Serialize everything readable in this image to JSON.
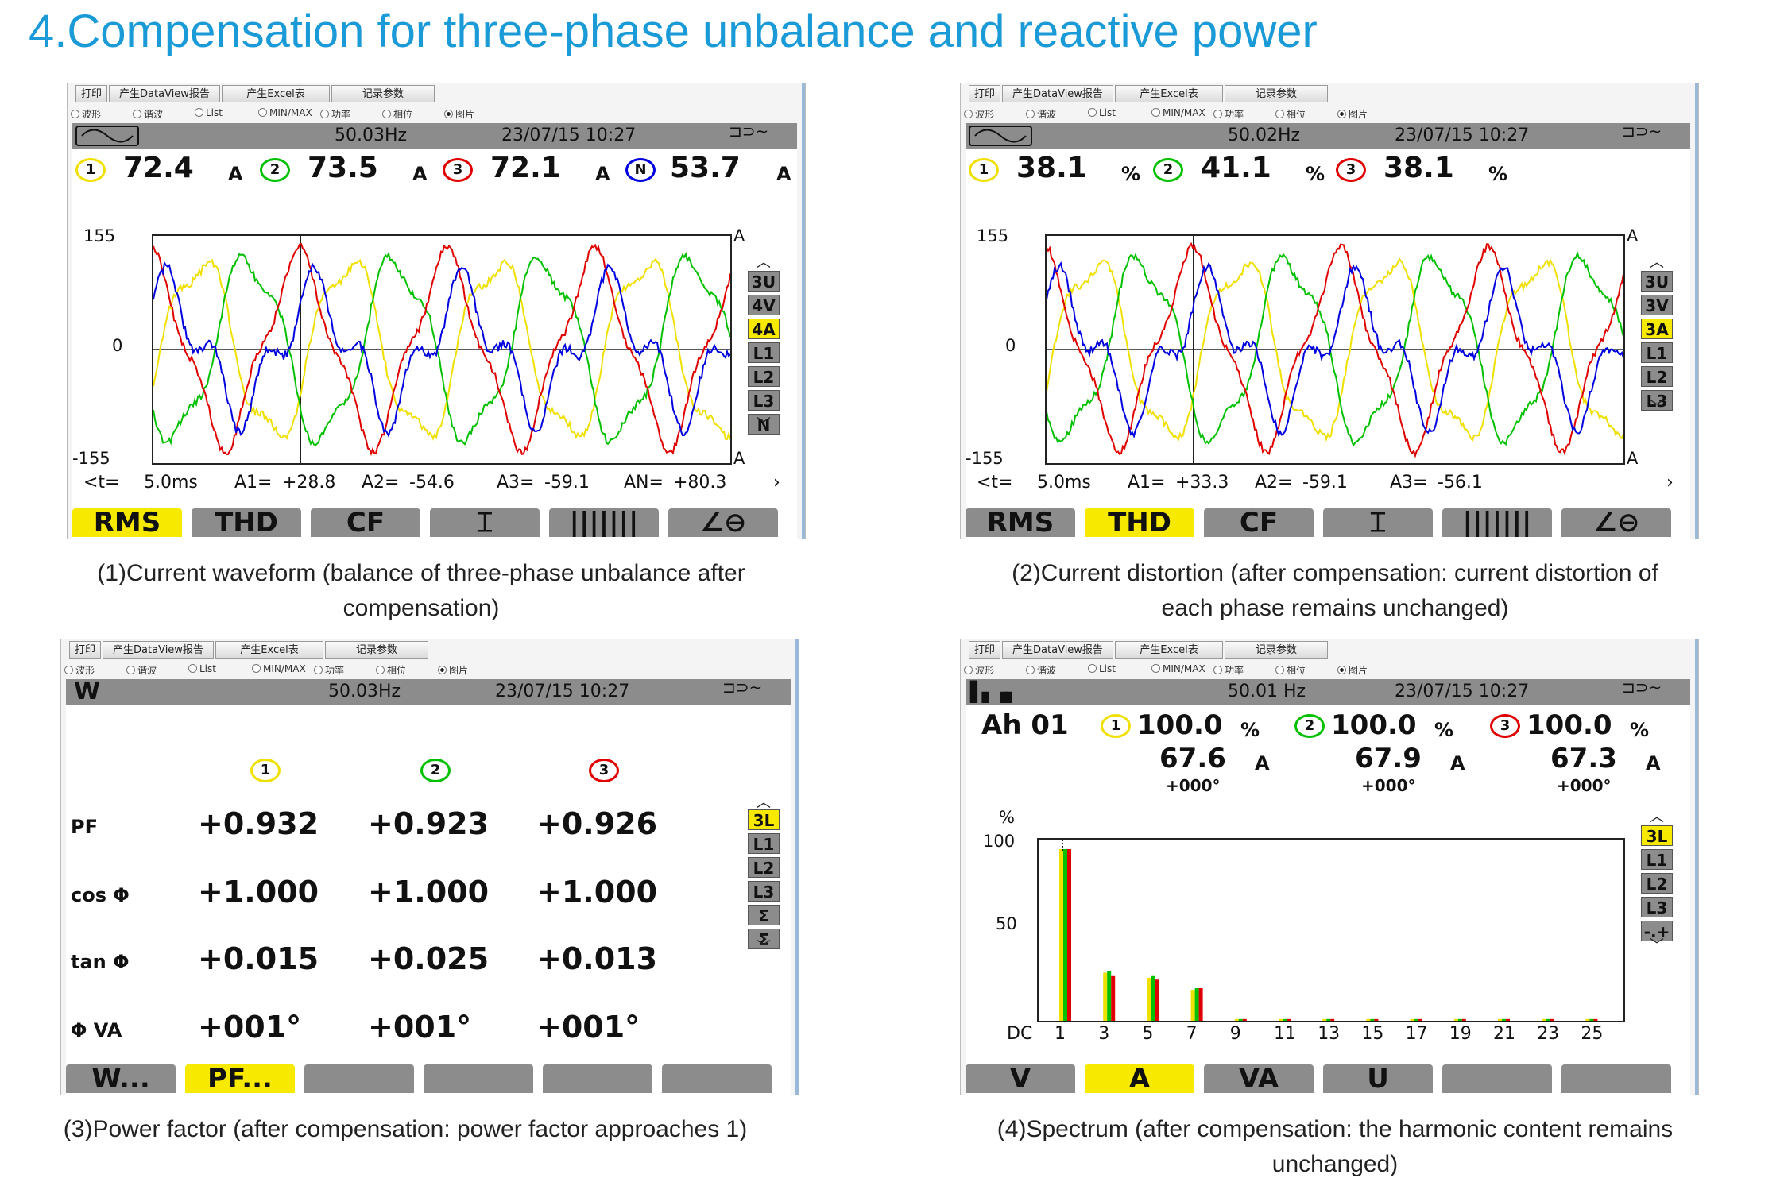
{
  "page_title": "4.Compensation for three-phase unbalance and reactive power",
  "toolbar": {
    "print": "打印",
    "dataview": "产生DataView报告",
    "excel": "产生Excel表",
    "record": "记录参数"
  },
  "radios": [
    {
      "label": "波形",
      "selected": false
    },
    {
      "label": "谐波",
      "selected": false
    },
    {
      "label": "List",
      "selected": false
    },
    {
      "label": "MIN/MAX",
      "selected": false
    },
    {
      "label": "功率",
      "selected": false
    },
    {
      "label": "相位",
      "selected": false
    },
    {
      "label": "图片",
      "selected": true
    }
  ],
  "panel1": {
    "freq": "50.03Hz",
    "datetime": "23/07/15  10:27",
    "phase_badges": [
      "1",
      "2",
      "3",
      "N"
    ],
    "values": [
      "72.4",
      "73.5",
      "72.1",
      "53.7"
    ],
    "unit": "A",
    "y_max": "155",
    "y_zero": "0",
    "y_min": "-155",
    "y_unit": "A",
    "side_buttons": [
      "3U",
      "4V",
      "4A",
      "L1",
      "L2",
      "L3",
      "N"
    ],
    "side_active": "4A",
    "cursor": {
      "t": "<t=",
      "t_val": "5.0ms",
      "a1": "A1=",
      "a1_val": "+28.8",
      "a2": "A2=",
      "a2_val": "-54.6",
      "a3": "A3=",
      "a3_val": "-59.1",
      "an": "AN=",
      "an_val": "+80.3",
      "arrow": "›"
    },
    "fbuttons": [
      "RMS",
      "THD",
      "CF",
      "⌶",
      "|||||||",
      "∠⊖"
    ],
    "factive": "RMS",
    "caption_l1": "(1)Current waveform (balance of three-phase unbalance after",
    "caption_l2": "compensation)"
  },
  "panel2": {
    "freq": "50.02Hz",
    "datetime": "23/07/15  10:27",
    "phase_badges": [
      "1",
      "2",
      "3"
    ],
    "values": [
      "38.1",
      "41.1",
      "38.1"
    ],
    "unit": "%",
    "y_max": "155",
    "y_zero": "0",
    "y_min": "-155",
    "y_unit": "A",
    "side_buttons": [
      "3U",
      "3V",
      "3A",
      "L1",
      "L2",
      "L3"
    ],
    "side_active": "3A",
    "cursor": {
      "t": "<t=",
      "t_val": "5.0ms",
      "a1": "A1=",
      "a1_val": "+33.3",
      "a2": "A2=",
      "a2_val": "-59.1",
      "a3": "A3=",
      "a3_val": "-56.1",
      "arrow": "›"
    },
    "fbuttons": [
      "RMS",
      "THD",
      "CF",
      "⌶",
      "|||||||",
      "∠⊖"
    ],
    "factive": "THD",
    "caption_l1": "(2)Current distortion (after compensation: current distortion of",
    "caption_l2": "each phase remains unchanged)"
  },
  "panel3": {
    "freq": "50.03Hz",
    "datetime": "23/07/15  10:27",
    "phase_badges": [
      "1",
      "2",
      "3"
    ],
    "rows": [
      {
        "label": "PF",
        "v": [
          "+0.932",
          "+0.923",
          "+0.926"
        ]
      },
      {
        "label": "cos Φ",
        "v": [
          "+1.000",
          "+1.000",
          "+1.000"
        ]
      },
      {
        "label": "tan Φ",
        "v": [
          "+0.015",
          "+0.025",
          "+0.013"
        ]
      },
      {
        "label": "Φ VA",
        "v": [
          "+001°",
          "+001°",
          "+001°"
        ]
      }
    ],
    "side_buttons": [
      "3L",
      "L1",
      "L2",
      "L3",
      "Σ",
      "Σ̄"
    ],
    "side_active": "3L",
    "fbuttons": [
      "W...",
      "PF...",
      "",
      "",
      "",
      ""
    ],
    "factive": "PF...",
    "caption": "(3)Power factor (after compensation: power factor approaches 1)"
  },
  "panel4": {
    "freq": "50.01 Hz",
    "datetime": "23/07/15  10:27",
    "harmonic": "Ah 01",
    "phase_badges": [
      "1",
      "2",
      "3"
    ],
    "pct": [
      "100.0",
      "100.0",
      "100.0"
    ],
    "pct_unit": "%",
    "amps": [
      "67.6",
      "67.9",
      "67.3"
    ],
    "amp_unit": "A",
    "angles": [
      "+000°",
      "+000°",
      "+000°"
    ],
    "y_unit": "%",
    "y_100": "100",
    "y_50": "50",
    "x_ticks": [
      "DC",
      "1",
      "3",
      "5",
      "7",
      "9",
      "11",
      "13",
      "15",
      "17",
      "19",
      "21",
      "23",
      "25"
    ],
    "side_buttons": [
      "3L",
      "L1",
      "L2",
      "L3",
      "-.+"
    ],
    "side_active": "3L",
    "fbuttons": [
      "V",
      "A",
      "VA",
      "U",
      "",
      ""
    ],
    "factive": "A",
    "caption_l1": "(4)Spectrum (after compensation: the harmonic content remains",
    "caption_l2": "unchanged)",
    "chart_data": {
      "type": "bar",
      "categories": [
        "1",
        "3",
        "5",
        "7",
        "9",
        "11",
        "13",
        "15",
        "17",
        "19",
        "21",
        "23",
        "25"
      ],
      "series": [
        {
          "name": "1",
          "values": [
            100,
            28,
            25,
            18,
            1,
            1,
            1,
            1,
            1,
            1,
            1,
            1,
            1
          ]
        },
        {
          "name": "2",
          "values": [
            100,
            29,
            26,
            19,
            1,
            1,
            1,
            1,
            1,
            1,
            1,
            1,
            1
          ]
        },
        {
          "name": "3",
          "values": [
            100,
            26,
            24,
            19,
            1,
            1,
            1,
            1,
            1,
            1,
            1,
            1,
            1
          ]
        }
      ],
      "ylim": [
        0,
        100
      ],
      "colors": [
        "#f0e000",
        "#00c000",
        "#e00000"
      ]
    }
  },
  "colors": {
    "title": "#1a9ad6",
    "active": "#f7ea00",
    "gray": "#8c8c8c",
    "phase1": "#f0e000",
    "phase2": "#00c000",
    "phase3": "#e00000",
    "neutral": "#0000e0"
  }
}
